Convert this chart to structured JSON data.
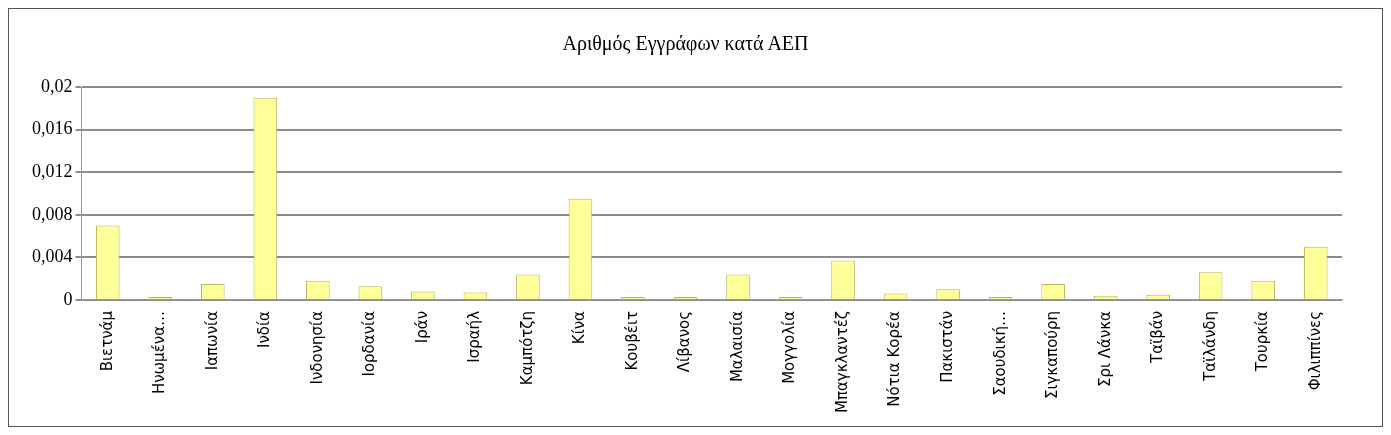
{
  "chart_data": {
    "type": "bar",
    "title": "Αριθμός Εγγράφων κατά ΑΕΠ",
    "categories": [
      "Βιετνάμ",
      "Ηνωμένα…",
      "Ιαπωνία",
      "Ινδία",
      "Ινδονησία",
      "Ιορδανία",
      "Ιράν",
      "Ισραήλ",
      "Καμπότζη",
      "Κίνα",
      "Κουβέιτ",
      "Λίβανος",
      "Μαλαισία",
      "Μογγολία",
      "Μπαγκλαντέζ",
      "Νότια Κορέα",
      "Πακιστάν",
      "Σαουδική…",
      "Σιγκαπούρη",
      "Σρι Λάνκα",
      "Ταϊβάν",
      "Ταϊλάνδη",
      "Τουρκία",
      "Φιλιππίνες"
    ],
    "values": [
      0.007,
      0.0001,
      0.0015,
      0.019,
      0.0018,
      0.0013,
      0.0008,
      0.0007,
      0.0024,
      0.0095,
      0.0001,
      0.0001,
      0.0024,
      0.0002,
      0.0037,
      0.0006,
      0.001,
      0.0001,
      0.0015,
      0.0004,
      0.0005,
      0.0026,
      0.0018,
      0.005
    ],
    "color": "#ffff99",
    "ylim": [
      0,
      0.02
    ],
    "yticks": [
      {
        "value": 0,
        "label": "0"
      },
      {
        "value": 0.004,
        "label": "0,004"
      },
      {
        "value": 0.008,
        "label": "0,008"
      },
      {
        "value": 0.012,
        "label": "0,012"
      },
      {
        "value": 0.016,
        "label": "0,016"
      },
      {
        "value": 0.02,
        "label": "0,02"
      }
    ],
    "grid": "y"
  }
}
